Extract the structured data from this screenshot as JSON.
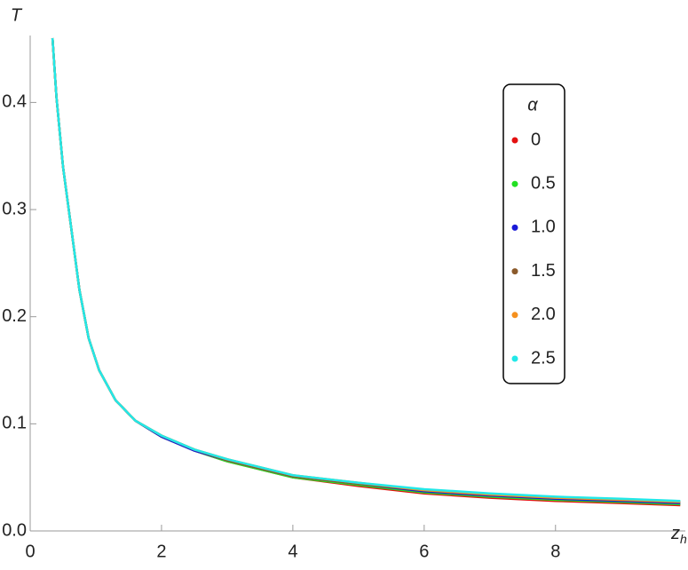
{
  "chart_data": {
    "type": "line",
    "ylabel": "T",
    "xlabel": {
      "text": "z",
      "subscript": "h"
    },
    "legend_title": "α",
    "legend_position": "upper-right",
    "x": [
      0.34,
      0.4,
      0.5,
      0.62,
      0.75,
      0.89,
      1.05,
      1.3,
      1.6,
      2,
      2.5,
      3,
      4,
      5,
      6,
      7,
      8,
      9,
      9.9
    ],
    "series": [
      {
        "name": "0",
        "color": "#e41010",
        "values": [
          0.46,
          0.405,
          0.34,
          0.285,
          0.225,
          0.18,
          0.15,
          0.122,
          0.103,
          0.088,
          0.075,
          0.065,
          0.05,
          0.042,
          0.035,
          0.031,
          0.028,
          0.026,
          0.024
        ]
      },
      {
        "name": "0.5",
        "color": "#22e022",
        "values": [
          0.46,
          0.405,
          0.34,
          0.285,
          0.225,
          0.18,
          0.15,
          0.122,
          0.103,
          0.088,
          0.075,
          0.065,
          0.05,
          0.043,
          0.036,
          0.032,
          0.029,
          0.027,
          0.025
        ]
      },
      {
        "name": "1.0",
        "color": "#1a1ad8",
        "values": [
          0.46,
          0.405,
          0.34,
          0.285,
          0.225,
          0.18,
          0.15,
          0.122,
          0.103,
          0.088,
          0.075,
          0.066,
          0.051,
          0.044,
          0.037,
          0.033,
          0.03,
          0.028,
          0.026
        ]
      },
      {
        "name": "1.5",
        "color": "#8b5a2b",
        "values": [
          0.46,
          0.405,
          0.34,
          0.285,
          0.225,
          0.18,
          0.15,
          0.122,
          0.103,
          0.089,
          0.076,
          0.066,
          0.051,
          0.044,
          0.038,
          0.034,
          0.031,
          0.029,
          0.027
        ]
      },
      {
        "name": "2.0",
        "color": "#f5901e",
        "values": [
          0.46,
          0.405,
          0.34,
          0.285,
          0.225,
          0.18,
          0.15,
          0.122,
          0.103,
          0.089,
          0.076,
          0.067,
          0.052,
          0.045,
          0.038,
          0.034,
          0.031,
          0.029,
          0.027
        ]
      },
      {
        "name": "2.5",
        "color": "#22e8e8",
        "values": [
          0.46,
          0.405,
          0.34,
          0.285,
          0.225,
          0.18,
          0.15,
          0.122,
          0.103,
          0.089,
          0.076,
          0.067,
          0.052,
          0.045,
          0.039,
          0.035,
          0.032,
          0.03,
          0.028
        ]
      }
    ],
    "xlim": [
      0,
      9.95
    ],
    "ylim": [
      0,
      0.46
    ],
    "xticks": [
      0,
      2,
      4,
      6,
      8
    ],
    "yticks": [
      {
        "value": 0,
        "label": "0.0"
      },
      0.1,
      0.2,
      0.3,
      0.4
    ]
  }
}
